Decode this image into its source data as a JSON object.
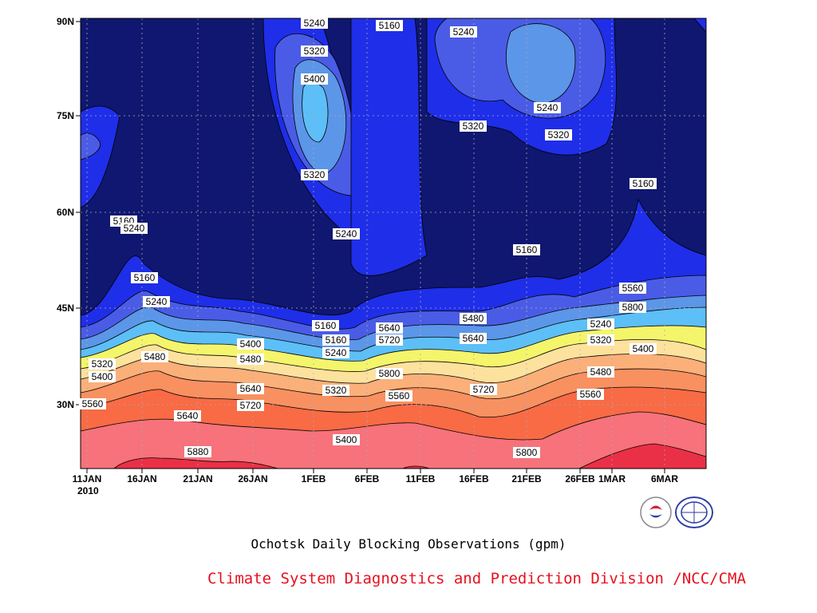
{
  "chart_data": {
    "type": "heatmap",
    "title": "Ochotsk Daily Blocking Observations (gpm)",
    "x_axis": {
      "ticks": [
        "11JAN",
        "16JAN",
        "21JAN",
        "26JAN",
        "1FEB",
        "6FEB",
        "11FEB",
        "16FEB",
        "21FEB",
        "26FEB",
        "1MAR",
        "6MAR"
      ],
      "year_label": "2010",
      "range": [
        "2010-01-11",
        "2010-03-12"
      ]
    },
    "y_axis": {
      "ticks": [
        "30N",
        "45N",
        "60N",
        "75N",
        "90N"
      ],
      "range_deg": [
        20,
        90
      ]
    },
    "contour_levels_gpm": [
      5160,
      5240,
      5320,
      5400,
      5480,
      5560,
      5640,
      5720,
      5800,
      5880
    ],
    "band_colors": [
      "#0f1770",
      "#1f2ee8",
      "#4a5ce6",
      "#5c96e8",
      "#5cbff7",
      "#f5f56b",
      "#fde29e",
      "#fbb07a",
      "#f99060",
      "#f86b45",
      "#f7727a",
      "#ea3046"
    ],
    "contour_labels": [
      {
        "text": "5240"
      },
      {
        "text": "5320"
      },
      {
        "text": "5400"
      },
      {
        "text": "5320"
      },
      {
        "text": "5240"
      },
      {
        "text": "5160"
      },
      {
        "text": "5240"
      },
      {
        "text": "5320"
      },
      {
        "text": "5160"
      },
      {
        "text": "5240"
      },
      {
        "text": "5160"
      },
      {
        "text": "5160"
      },
      {
        "text": "5160"
      },
      {
        "text": "5160"
      },
      {
        "text": "5240"
      },
      {
        "text": "5320"
      },
      {
        "text": "5400"
      },
      {
        "text": "5480"
      },
      {
        "text": "5560"
      },
      {
        "text": "5640"
      },
      {
        "text": "5400"
      },
      {
        "text": "5480"
      },
      {
        "text": "5640"
      },
      {
        "text": "5720"
      },
      {
        "text": "5800"
      },
      {
        "text": "5880"
      },
      {
        "text": "5160"
      },
      {
        "text": "5240"
      },
      {
        "text": "5320"
      },
      {
        "text": "5560"
      },
      {
        "text": "5400"
      },
      {
        "text": "5480"
      },
      {
        "text": "5640"
      },
      {
        "text": "5720"
      },
      {
        "text": "5800"
      },
      {
        "text": "5240"
      },
      {
        "text": "5320"
      },
      {
        "text": "5560"
      },
      {
        "text": "5800"
      },
      {
        "text": "5240"
      },
      {
        "text": "5320"
      },
      {
        "text": "5400"
      },
      {
        "text": "5480"
      },
      {
        "text": "5560"
      },
      {
        "text": "5640"
      },
      {
        "text": "5720"
      }
    ],
    "grid": true
  },
  "footer": {
    "credit": "Climate System Diagnostics and Prediction Division /NCC/CMA",
    "logos": [
      "bcc-logo",
      "ncc-logo"
    ]
  }
}
